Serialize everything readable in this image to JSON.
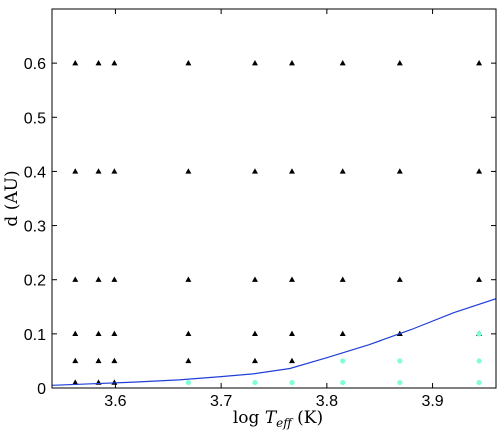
{
  "chart_data": {
    "type": "scatter",
    "title": "",
    "xlabel": "log T_eff (K)",
    "ylabel": "d (AU)",
    "xlim": [
      3.54,
      3.96
    ],
    "ylim": [
      0,
      0.7
    ],
    "xticks": [
      3.6,
      3.7,
      3.8,
      3.9
    ],
    "yticks": [
      0,
      0.1,
      0.2,
      0.3,
      0.4,
      0.5,
      0.6
    ],
    "xtick_labels": [
      "3.6",
      "3.7",
      "3.8",
      "3.9"
    ],
    "ytick_labels": [
      "0",
      "0.1",
      "0.2",
      "0.3",
      "0.4",
      "0.5",
      "0.6"
    ],
    "grid": false,
    "colors": {
      "triangles": "#000000",
      "dots": "#7fffd4",
      "line": "#1f3fd6"
    },
    "series": [
      {
        "marker": "triangle",
        "points": [
          [
            3.562,
            0.6
          ],
          [
            3.562,
            0.4
          ],
          [
            3.562,
            0.2
          ],
          [
            3.562,
            0.1
          ],
          [
            3.562,
            0.05
          ],
          [
            3.562,
            0.01
          ],
          [
            3.584,
            0.6
          ],
          [
            3.584,
            0.4
          ],
          [
            3.584,
            0.2
          ],
          [
            3.584,
            0.1
          ],
          [
            3.584,
            0.05
          ],
          [
            3.584,
            0.01
          ],
          [
            3.599,
            0.6
          ],
          [
            3.599,
            0.4
          ],
          [
            3.599,
            0.2
          ],
          [
            3.599,
            0.1
          ],
          [
            3.599,
            0.05
          ],
          [
            3.599,
            0.01
          ],
          [
            3.669,
            0.6
          ],
          [
            3.669,
            0.4
          ],
          [
            3.669,
            0.2
          ],
          [
            3.669,
            0.1
          ],
          [
            3.669,
            0.05
          ],
          [
            3.732,
            0.6
          ],
          [
            3.732,
            0.4
          ],
          [
            3.732,
            0.2
          ],
          [
            3.732,
            0.1
          ],
          [
            3.732,
            0.05
          ],
          [
            3.767,
            0.6
          ],
          [
            3.767,
            0.4
          ],
          [
            3.767,
            0.2
          ],
          [
            3.767,
            0.1
          ],
          [
            3.767,
            0.05
          ],
          [
            3.815,
            0.6
          ],
          [
            3.815,
            0.4
          ],
          [
            3.815,
            0.2
          ],
          [
            3.815,
            0.1
          ],
          [
            3.869,
            0.6
          ],
          [
            3.869,
            0.4
          ],
          [
            3.869,
            0.2
          ],
          [
            3.869,
            0.1
          ],
          [
            3.944,
            0.6
          ],
          [
            3.944,
            0.4
          ],
          [
            3.944,
            0.2
          ],
          [
            3.944,
            0.1
          ]
        ]
      },
      {
        "marker": "dot",
        "points": [
          [
            3.669,
            0.01
          ],
          [
            3.732,
            0.01
          ],
          [
            3.767,
            0.01
          ],
          [
            3.815,
            0.05
          ],
          [
            3.815,
            0.01
          ],
          [
            3.869,
            0.05
          ],
          [
            3.869,
            0.01
          ],
          [
            3.944,
            0.1
          ],
          [
            3.944,
            0.05
          ],
          [
            3.944,
            0.01
          ]
        ]
      },
      {
        "marker": "line",
        "points": [
          [
            3.54,
            0.005
          ],
          [
            3.58,
            0.008
          ],
          [
            3.62,
            0.011
          ],
          [
            3.66,
            0.015
          ],
          [
            3.7,
            0.021
          ],
          [
            3.73,
            0.026
          ],
          [
            3.765,
            0.036
          ],
          [
            3.8,
            0.056
          ],
          [
            3.84,
            0.08
          ],
          [
            3.88,
            0.108
          ],
          [
            3.92,
            0.139
          ],
          [
            3.96,
            0.165
          ]
        ]
      }
    ]
  }
}
